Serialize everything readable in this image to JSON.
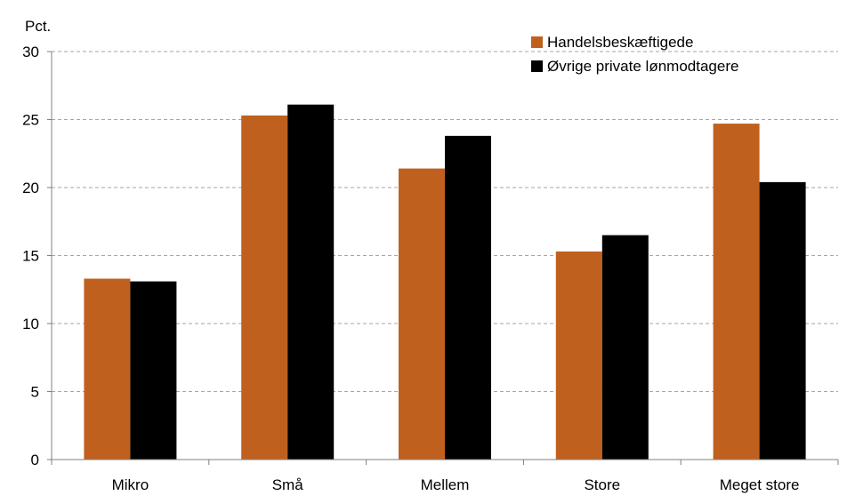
{
  "chart_data": {
    "type": "bar",
    "ylabel": "Pct.",
    "ylim": [
      0,
      30
    ],
    "yticks": [
      0,
      5,
      10,
      15,
      20,
      25,
      30
    ],
    "categories": [
      "Mikro",
      "Små",
      "Mellem",
      "Store",
      "Meget store"
    ],
    "series": [
      {
        "name": "Handelsbeskæftigede",
        "color": "#C0601F",
        "values": [
          13.3,
          25.3,
          21.4,
          15.3,
          24.7
        ]
      },
      {
        "name": "Øvrige private lønmodtagere",
        "color": "#000000",
        "values": [
          13.1,
          26.1,
          23.8,
          16.5,
          20.4
        ]
      }
    ],
    "grid": "horizontal dashed",
    "legend_position": "top-right"
  }
}
